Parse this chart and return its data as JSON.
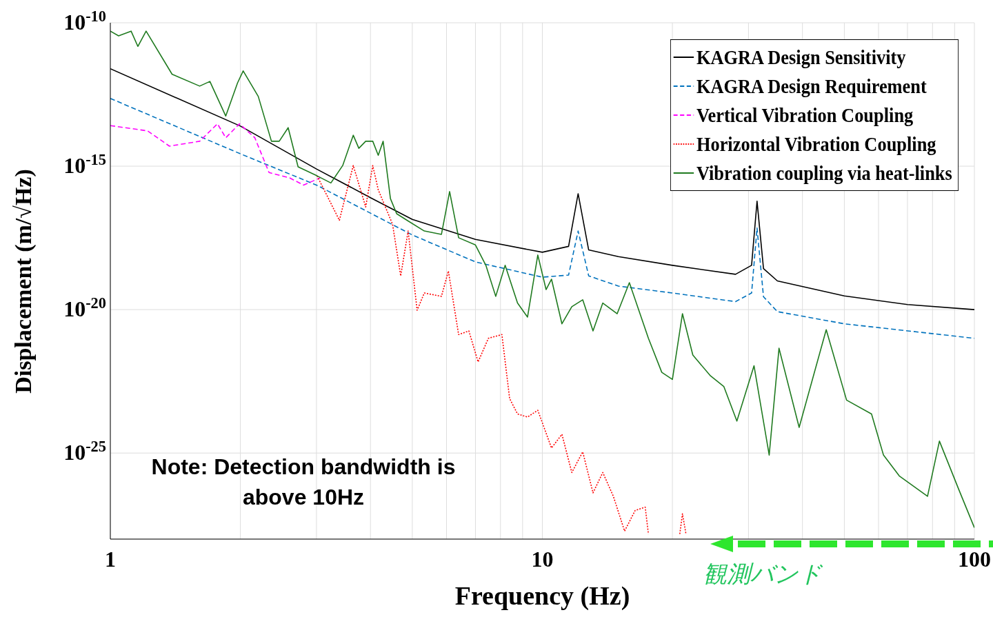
{
  "chart_data": {
    "type": "line",
    "xlabel": "Frequency (Hz)",
    "ylabel": "Displacement (m/√Hz)",
    "log": "xy",
    "grid": true,
    "legend": "top right",
    "xlim": [
      1,
      100
    ],
    "ylim": [
      1e-28,
      1e-10
    ],
    "xticks": [
      1,
      {
        "value": 2,
        "label": null
      },
      {
        "value": 3,
        "label": null
      },
      {
        "value": 4,
        "label": null
      },
      {
        "value": 5,
        "label": null
      },
      {
        "value": 6,
        "label": null
      },
      {
        "value": 7,
        "label": null
      },
      {
        "value": 8,
        "label": null
      },
      {
        "value": 9,
        "label": null
      },
      10,
      {
        "value": 20,
        "label": null
      },
      {
        "value": 30,
        "label": null
      },
      {
        "value": 40,
        "label": null
      },
      {
        "value": 50,
        "label": null
      },
      {
        "value": 60,
        "label": null
      },
      {
        "value": 70,
        "label": null
      },
      {
        "value": 80,
        "label": null
      },
      {
        "value": 90,
        "label": null
      },
      100
    ],
    "yticks": [
      {
        "value": 1e-25,
        "label": "10$^{-25}$"
      },
      {
        "value": 1e-20,
        "label": "10$^{-20}$"
      },
      {
        "value": 1e-15,
        "label": "10$^{-15}$"
      },
      {
        "value": 1e-10,
        "label": "10$^{-10}$"
      }
    ],
    "series": [
      {
        "name": "KAGRA Design Sensitivity",
        "color": "#000000",
        "line_style": "solid",
        "x": [
          1,
          2,
          3,
          4,
          5,
          7,
          10,
          11.5,
          12.1,
          12.8,
          15,
          20,
          28,
          30.5,
          31.4,
          32.5,
          35,
          50,
          70,
          100
        ],
        "values": [
          2.5e-12,
          2.5e-14,
          8e-16,
          8e-17,
          1.4e-17,
          2.8e-18,
          1e-18,
          1.6e-18,
          1.1e-16,
          1.2e-18,
          7e-19,
          3.5e-19,
          1.7e-19,
          3.5e-19,
          6e-17,
          2.7e-19,
          1e-19,
          3e-20,
          1.5e-20,
          1e-20
        ]
      },
      {
        "name": "KAGRA Design Requirement",
        "color": "#0072bd",
        "line_style": "dashed",
        "x": [
          1,
          2,
          3,
          5,
          7,
          10,
          11.5,
          12.1,
          12.8,
          15,
          20,
          28,
          30.5,
          31.4,
          32.5,
          35,
          50,
          100
        ],
        "values": [
          2.3e-13,
          2.7e-15,
          2.2e-16,
          4e-18,
          4.6e-19,
          1.35e-19,
          1.6e-19,
          5.5e-18,
          1.5e-19,
          6.6e-20,
          3.8e-20,
          1.9e-20,
          3.8e-20,
          7e-18,
          2.8e-20,
          8.5e-21,
          3.2e-21,
          1e-21
        ]
      },
      {
        "name": "Vertical Vibration Coupling",
        "color": "#ff00ff",
        "line_style": "dashed",
        "x": [
          1,
          1.22,
          1.37,
          1.61,
          1.77,
          1.85,
          1.99,
          2.16,
          2.33,
          2.6,
          2.8,
          3.06
        ],
        "values": [
          2.6e-14,
          1.7e-14,
          5e-15,
          7.4e-15,
          3e-14,
          9.8e-15,
          3e-14,
          9.8e-15,
          6e-16,
          3.9e-16,
          2.2e-16,
          3.9e-16
        ]
      },
      {
        "name": "Horizontal Vibration Coupling",
        "color": "#ff0000",
        "line_style": "dotted",
        "x": [
          3.01,
          3.39,
          3.65,
          3.9,
          4.05,
          4.17,
          4.5,
          4.7,
          4.89,
          5.13,
          5.33,
          5.84,
          6.06,
          6.4,
          6.76,
          7.1,
          7.5,
          8.06,
          8.4,
          8.76,
          9.24,
          9.76,
          10.5,
          11.1,
          11.7,
          12.4,
          13.1,
          13.8,
          14.6,
          15.5,
          16.4,
          17.3,
          17.6,
          19,
          20.8,
          21.1,
          21.5
        ],
        "values": [
          4.6e-16,
          1.3e-17,
          1.05e-15,
          3.8e-17,
          1.05e-15,
          1.5e-16,
          9.5e-18,
          1.5e-19,
          5.5e-18,
          9.5e-21,
          3.8e-20,
          2.9e-20,
          2.2e-19,
          1.35e-21,
          1.8e-21,
          1.5e-22,
          1e-21,
          1.35e-21,
          7.9e-24,
          2.3e-24,
          1.8e-24,
          3.1e-24,
          1.5e-25,
          4.5e-25,
          2.1e-26,
          1.1e-25,
          4.1e-27,
          2.1e-26,
          3.1e-27,
          1.9e-28,
          1e-27,
          1.3e-27,
          1.5e-28,
          null,
          1.5e-28,
          7.6e-28,
          1.5e-28
        ]
      },
      {
        "name": "Vibration coupling via heat-links",
        "color": "#1f7a1f",
        "line_style": "solid",
        "x": [
          1,
          1.045,
          1.117,
          1.158,
          1.21,
          1.39,
          1.61,
          1.7,
          1.85,
          1.97,
          2.03,
          2.2,
          2.36,
          2.46,
          2.58,
          2.72,
          3.01,
          3.24,
          3.45,
          3.65,
          3.76,
          3.9,
          4.05,
          4.17,
          4.28,
          4.45,
          4.6,
          4.86,
          5.33,
          5.84,
          6.1,
          6.4,
          7,
          7.4,
          7.8,
          8.2,
          8.76,
          9.24,
          9.76,
          10.2,
          10.5,
          11.1,
          11.7,
          12.4,
          13.1,
          13.8,
          14.9,
          15.9,
          17.6,
          18.9,
          20,
          21.1,
          22.3,
          24.5,
          26.3,
          28.2,
          30.9,
          33.5,
          35.3,
          39.3,
          45.4,
          50.6,
          57.8,
          61.6,
          67,
          77.9,
          83,
          92,
          100
        ],
        "values": [
          5.1e-11,
          3.5e-11,
          5.1e-11,
          1.5e-11,
          5.1e-11,
          1.6e-12,
          6.2e-13,
          9e-13,
          5.6e-14,
          8e-13,
          2.1e-12,
          2.7e-13,
          7.4e-15,
          7.4e-15,
          2.2e-14,
          9.5e-16,
          4.6e-16,
          2.6e-16,
          1.05e-15,
          1.2e-14,
          4.2e-15,
          7.4e-15,
          7.4e-15,
          2.4e-15,
          7.4e-15,
          7.4e-17,
          2.2e-17,
          1.3e-17,
          5.5e-18,
          4.2e-18,
          1.3e-16,
          3.2e-18,
          1.8e-18,
          3.5e-19,
          2.9e-20,
          3.5e-19,
          1.7e-20,
          5.5e-21,
          8e-19,
          5e-20,
          1.15e-19,
          3.2e-21,
          1.26e-20,
          2.2e-20,
          1.8e-21,
          1.7e-20,
          7.2e-21,
          8.7e-20,
          1e-21,
          6.5e-23,
          3.7e-23,
          7.2e-21,
          2.6e-22,
          4.9e-23,
          2.1e-23,
          1.3e-24,
          1.1e-22,
          8.5e-26,
          4.5e-22,
          7.8e-25,
          2e-21,
          7e-24,
          2.3e-24,
          8.5e-26,
          1.6e-26,
          3.1e-27,
          2.6e-25,
          5.4e-27,
          2.5e-28
        ]
      }
    ],
    "annotations": [
      "Note: Detection bandwidth is above 10Hz",
      "観測バンド"
    ]
  }
}
